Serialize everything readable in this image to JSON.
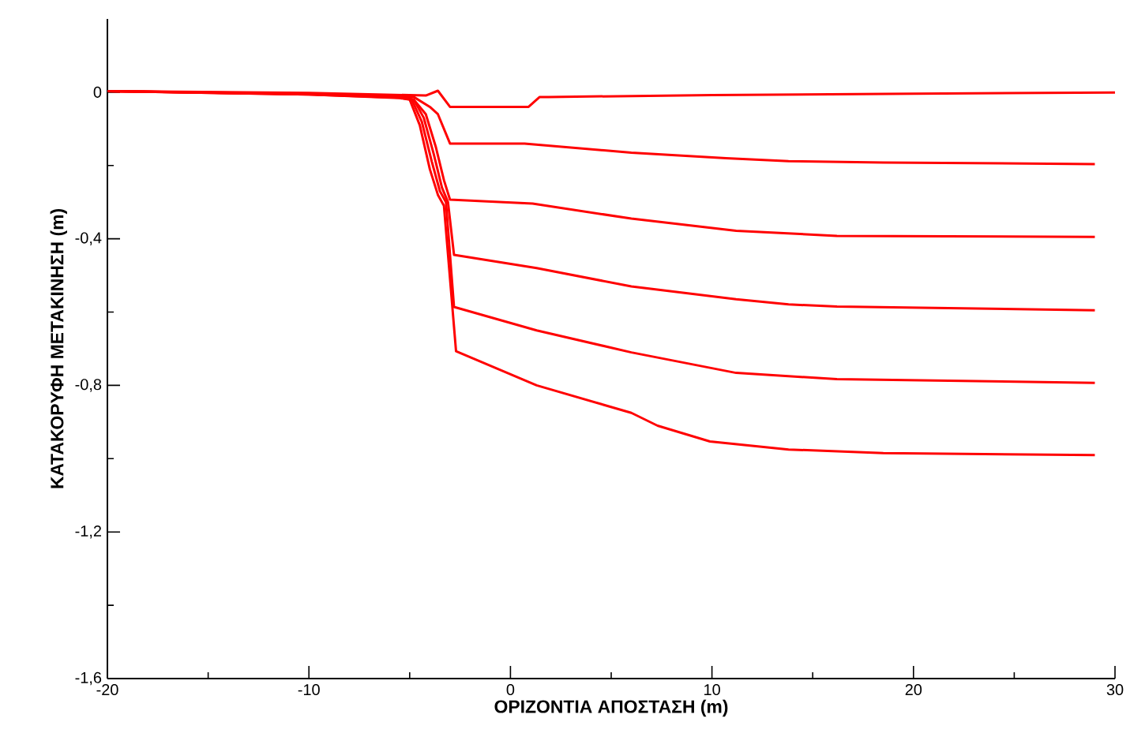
{
  "chart_data": {
    "type": "line",
    "xlabel": "ΟΡΙΖΟΝΤΙΑ ΑΠΟΣΤΑΣΗ (m)",
    "ylabel": "ΚΑΤΑΚΟΡΥΦΗ ΜΕΤΑΚΙΝΗΣΗ (m)",
    "xlim": [
      -20,
      30
    ],
    "ylim": [
      -1.6,
      0.2
    ],
    "xticks": [
      -20,
      {
        "value": -15,
        "label": null
      },
      -10,
      {
        "value": -5,
        "label": null
      },
      0,
      {
        "value": 5,
        "label": null
      },
      10,
      {
        "value": 15,
        "label": null
      },
      20,
      {
        "value": 25,
        "label": null
      },
      30
    ],
    "yticks": [
      {
        "value": -1.6,
        "label": "-1,6"
      },
      {
        "value": -1.4,
        "label": null
      },
      {
        "value": -1.2,
        "label": "-1,2"
      },
      {
        "value": -1.0,
        "label": null
      },
      {
        "value": -0.8,
        "label": "-0,8"
      },
      {
        "value": -0.6,
        "label": null
      },
      {
        "value": -0.4,
        "label": "-0,4"
      },
      {
        "value": -0.2,
        "label": null
      },
      0
    ],
    "marker": "none",
    "line_style": "solid",
    "series": [
      {
        "color": "#ff0000",
        "x": [
          -20,
          -10,
          -4.2,
          -3.6,
          -3.0,
          0.9,
          1.45,
          1.9,
          10,
          20,
          30
        ],
        "values": [
          0.003,
          -0.002,
          -0.009,
          0.004,
          -0.04,
          -0.04,
          -0.013,
          -0.013,
          -0.008,
          -0.004,
          -0.001
        ]
      },
      {
        "color": "#ff0000",
        "x": [
          -20,
          -10,
          -5.5,
          -4.8,
          -4.0,
          -3.6,
          -3.0,
          0.7,
          6,
          10.7,
          13.8,
          18.5,
          29
        ],
        "values": [
          0.003,
          -0.004,
          -0.01,
          -0.013,
          -0.04,
          -0.06,
          -0.14,
          -0.14,
          -0.165,
          -0.18,
          -0.188,
          -0.192,
          -0.196
        ]
      },
      {
        "color": "#ff0000",
        "x": [
          -20,
          -10,
          -5.5,
          -4.8,
          -4.2,
          -3.7,
          -3.3,
          -3.0,
          1.1,
          6,
          11.2,
          16.2,
          29
        ],
        "values": [
          0.003,
          -0.005,
          -0.013,
          -0.02,
          -0.06,
          -0.15,
          -0.24,
          -0.293,
          -0.304,
          -0.345,
          -0.378,
          -0.392,
          -0.395
        ]
      },
      {
        "color": "#ff0000",
        "x": [
          -20,
          -10,
          -5.5,
          -4.8,
          -4.3,
          -3.8,
          -3.4,
          -3.1,
          -2.8,
          1.3,
          6,
          11.2,
          13.8,
          16.2,
          29
        ],
        "values": [
          0.003,
          -0.005,
          -0.014,
          -0.02,
          -0.07,
          -0.17,
          -0.26,
          -0.3,
          -0.444,
          -0.48,
          -0.53,
          -0.565,
          -0.579,
          -0.585,
          -0.595
        ]
      },
      {
        "color": "#ff0000",
        "x": [
          -20,
          -10,
          -5.5,
          -4.9,
          -4.4,
          -3.9,
          -3.5,
          -3.2,
          -2.8,
          1.3,
          6,
          11.2,
          16.2,
          29
        ],
        "values": [
          0.003,
          -0.006,
          -0.015,
          -0.02,
          -0.08,
          -0.19,
          -0.27,
          -0.3,
          -0.586,
          -0.65,
          -0.71,
          -0.766,
          -0.783,
          -0.793
        ]
      },
      {
        "color": "#ff0000",
        "x": [
          -20,
          -10,
          -5.5,
          -5.0,
          -4.5,
          -4.0,
          -3.6,
          -3.3,
          -2.7,
          1.3,
          6,
          7.3,
          9.9,
          13.8,
          18.5,
          29
        ],
        "values": [
          0.003,
          -0.006,
          -0.016,
          -0.02,
          -0.09,
          -0.21,
          -0.28,
          -0.31,
          -0.707,
          -0.8,
          -0.875,
          -0.91,
          -0.953,
          -0.975,
          -0.985,
          -0.99
        ]
      }
    ]
  }
}
